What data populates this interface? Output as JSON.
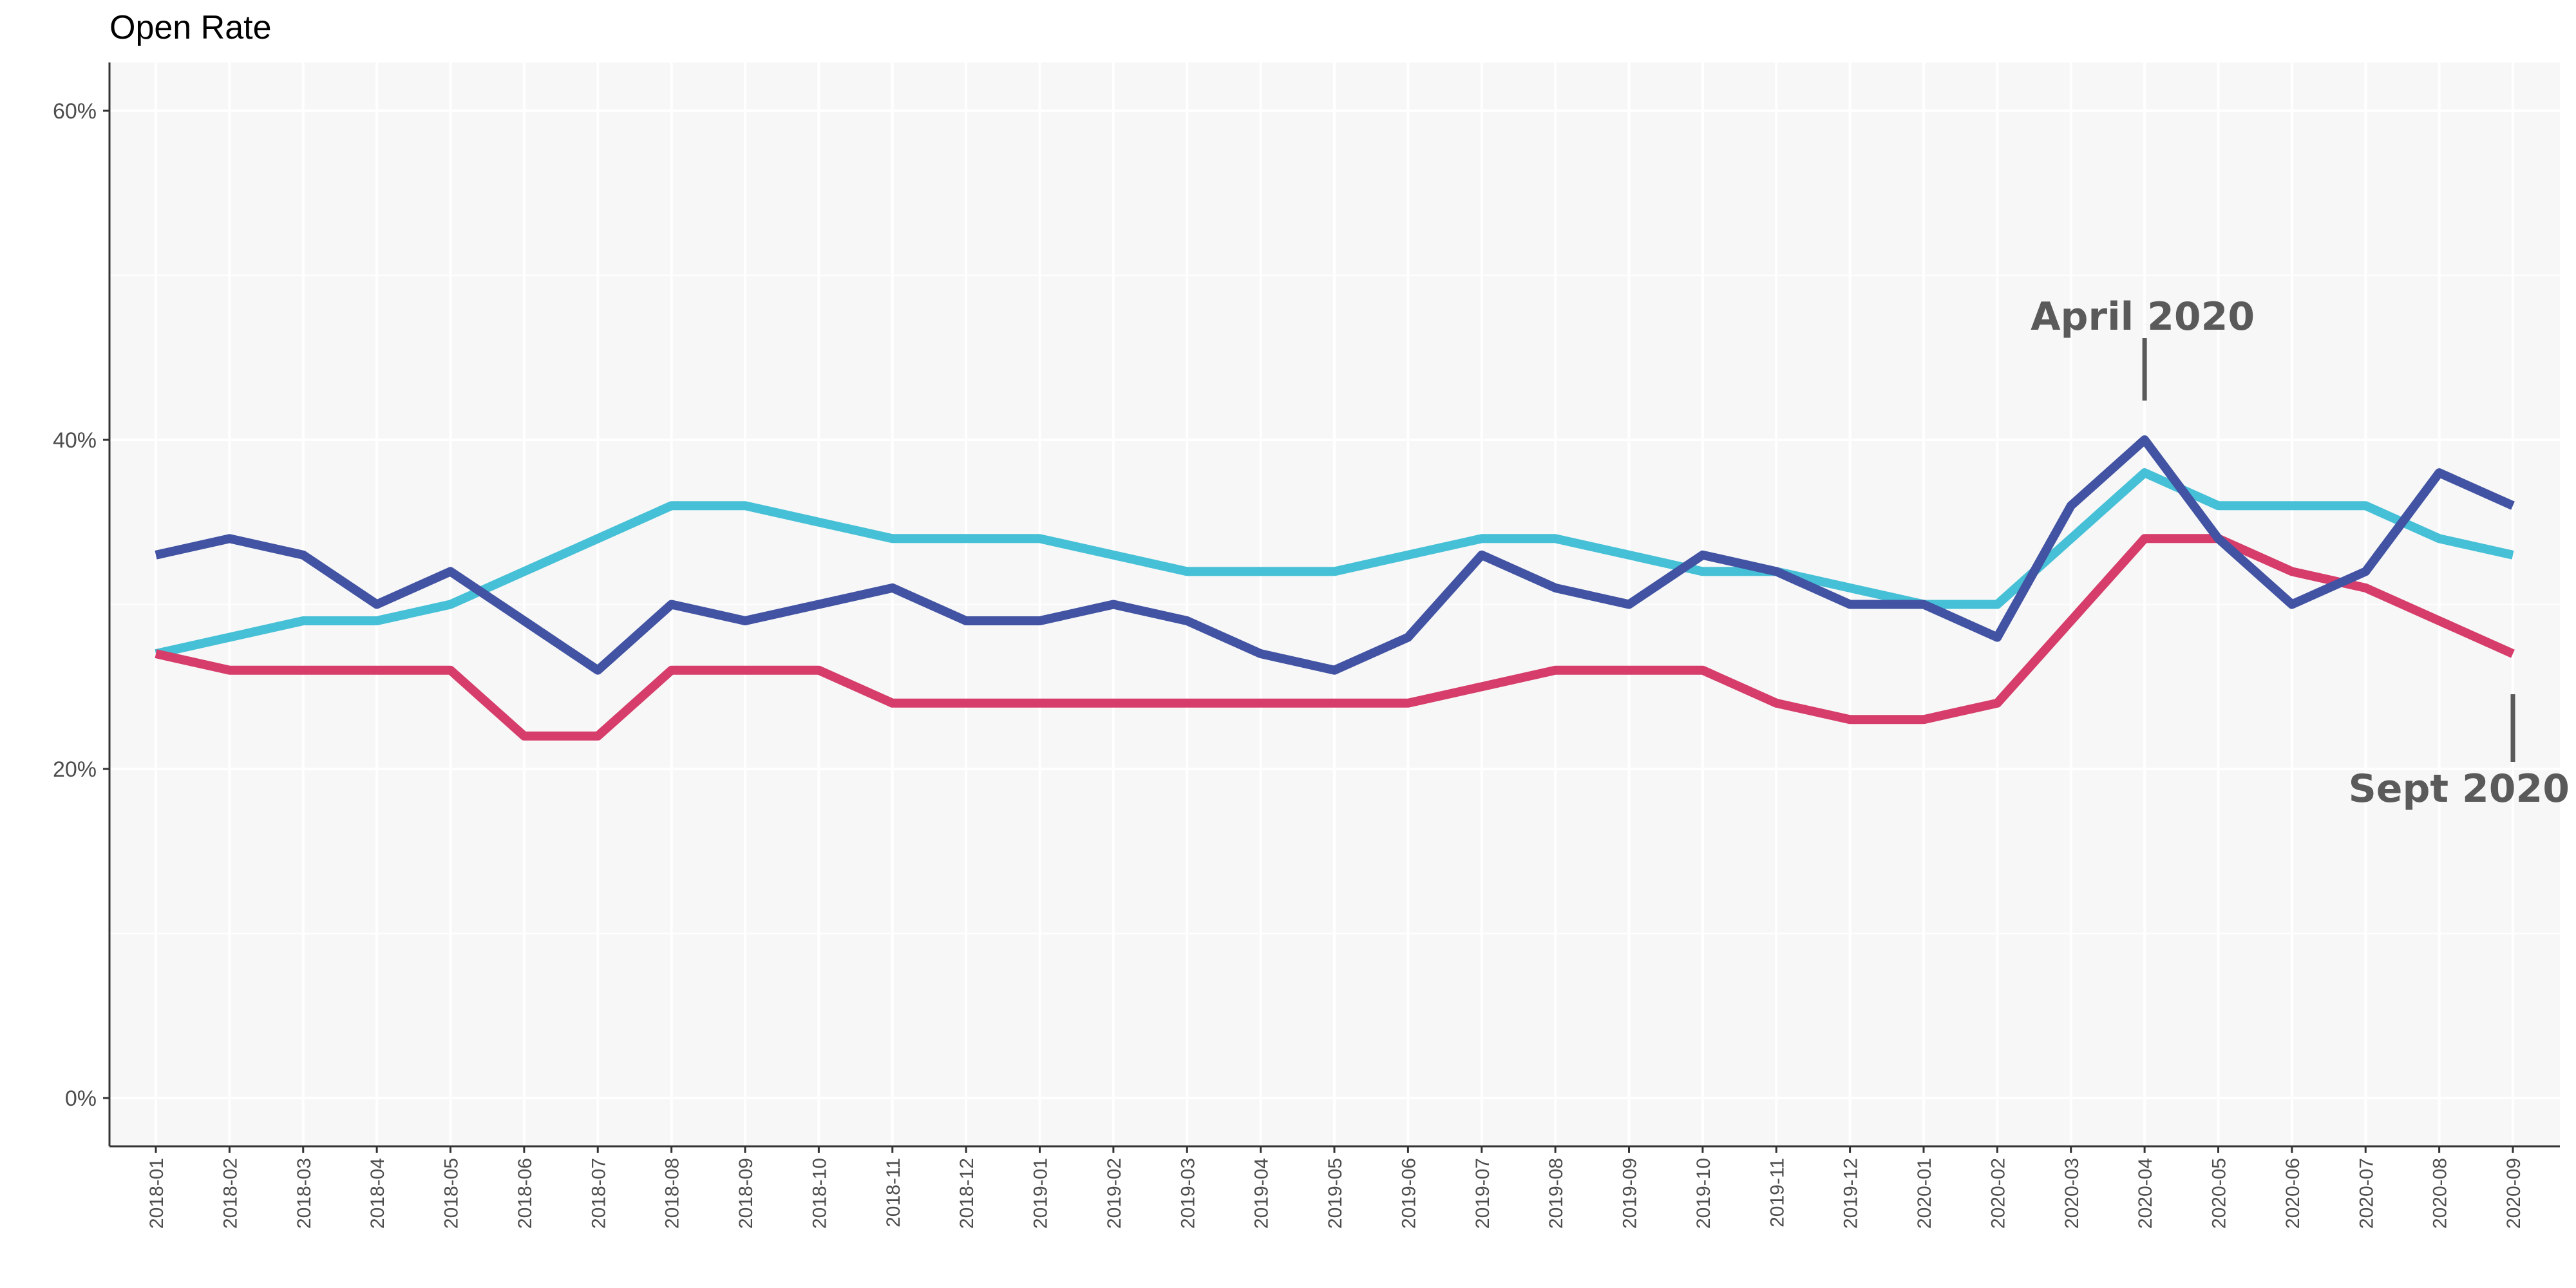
{
  "colors": {
    "panel_background": "#f7f7f7",
    "grid": "#ffffff",
    "axis": "#333333",
    "annotation": "#5a5a5a"
  },
  "chart_data": {
    "type": "line",
    "title": "Open Rate",
    "xlabel": "",
    "ylabel": "",
    "ylim": [
      0,
      0.6
    ],
    "y_ticks": [
      0,
      0.2,
      0.4,
      0.6
    ],
    "y_tick_labels": [
      "0%",
      "20%",
      "40%",
      "60%"
    ],
    "grid": true,
    "legend": "none",
    "x": [
      "2018-01",
      "2018-02",
      "2018-03",
      "2018-04",
      "2018-05",
      "2018-06",
      "2018-07",
      "2018-08",
      "2018-09",
      "2018-10",
      "2018-11",
      "2018-12",
      "2019-01",
      "2019-02",
      "2019-03",
      "2019-04",
      "2019-05",
      "2019-06",
      "2019-07",
      "2019-08",
      "2019-09",
      "2019-10",
      "2019-11",
      "2019-12",
      "2020-01",
      "2020-02",
      "2020-03",
      "2020-04",
      "2020-05",
      "2020-06",
      "2020-07",
      "2020-08",
      "2020-09"
    ],
    "series": [
      {
        "color": "#45c0d6",
        "values": [
          0.27,
          0.28,
          0.29,
          0.29,
          0.3,
          0.32,
          0.34,
          0.36,
          0.36,
          0.35,
          0.34,
          0.34,
          0.34,
          0.33,
          0.32,
          0.32,
          0.32,
          0.33,
          0.34,
          0.34,
          0.33,
          0.32,
          0.32,
          0.31,
          0.3,
          0.3,
          0.34,
          0.38,
          0.36,
          0.36,
          0.36,
          0.34,
          0.33
        ]
      },
      {
        "color": "#d63d6a",
        "values": [
          0.27,
          0.26,
          0.26,
          0.26,
          0.26,
          0.22,
          0.22,
          0.26,
          0.26,
          0.26,
          0.24,
          0.24,
          0.24,
          0.24,
          0.24,
          0.24,
          0.24,
          0.24,
          0.25,
          0.26,
          0.26,
          0.26,
          0.24,
          0.23,
          0.23,
          0.24,
          0.29,
          0.34,
          0.34,
          0.32,
          0.31,
          0.29,
          0.27
        ]
      },
      {
        "color": "#4253a3",
        "values": [
          0.33,
          0.34,
          0.33,
          0.3,
          0.32,
          0.29,
          0.26,
          0.3,
          0.29,
          0.3,
          0.31,
          0.29,
          0.29,
          0.3,
          0.29,
          0.27,
          0.26,
          0.28,
          0.33,
          0.31,
          0.3,
          0.33,
          0.32,
          0.3,
          0.3,
          0.28,
          0.36,
          0.4,
          0.34,
          0.3,
          0.32,
          0.38,
          0.36
        ]
      }
    ],
    "annotations": [
      {
        "text": "April 2020",
        "x": "2020-04",
        "placement": "above"
      },
      {
        "text": "Sept 2020",
        "x": "2020-09",
        "placement": "below"
      }
    ]
  }
}
